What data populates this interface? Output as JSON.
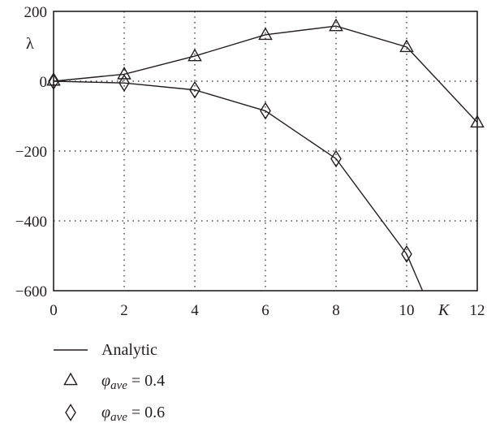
{
  "chart_data": {
    "type": "line",
    "xlabel": "K",
    "ylabel": "λ",
    "xlim": [
      0,
      12
    ],
    "ylim": [
      -600,
      200
    ],
    "x_ticks": [
      0,
      2,
      4,
      6,
      8,
      10,
      12
    ],
    "y_ticks": [
      200,
      0,
      -200,
      -400,
      -600
    ],
    "x_tick_labels": [
      "0",
      "2",
      "4",
      "6",
      "8",
      "10",
      "12"
    ],
    "y_tick_labels": [
      "200",
      "0",
      "−200",
      "−400",
      "−600"
    ],
    "grid": true,
    "legend_position": "bottom-left",
    "series": [
      {
        "name": "Analytic",
        "kind": "line",
        "x": [
          0,
          2,
          4,
          6,
          8,
          10,
          12
        ],
        "values": [
          0,
          20,
          72,
          133,
          158,
          98,
          -118
        ]
      },
      {
        "name": "Analytic",
        "kind": "line",
        "x": [
          0,
          2,
          4,
          6,
          8,
          10,
          10.45
        ],
        "values": [
          0,
          -5,
          -25,
          -85,
          -222,
          -495,
          -600
        ]
      },
      {
        "name": "φave = 0.4",
        "kind": "markers",
        "marker": "triangle",
        "x": [
          0,
          2,
          4,
          6,
          8,
          10,
          12
        ],
        "values": [
          2,
          20,
          72,
          133,
          158,
          98,
          -118
        ]
      },
      {
        "name": "φave = 0.6",
        "kind": "markers",
        "marker": "diamond",
        "x": [
          0,
          2,
          4,
          6,
          8,
          10
        ],
        "values": [
          0,
          -5,
          -25,
          -85,
          -222,
          -495
        ]
      }
    ],
    "legend": [
      {
        "marker": "line",
        "label": "Analytic"
      },
      {
        "marker": "triangle",
        "symbol": "φ",
        "subscript": "ave",
        "rest": " = 0.4"
      },
      {
        "marker": "diamond",
        "symbol": "φ",
        "subscript": "ave",
        "rest": " = 0.6"
      }
    ]
  }
}
